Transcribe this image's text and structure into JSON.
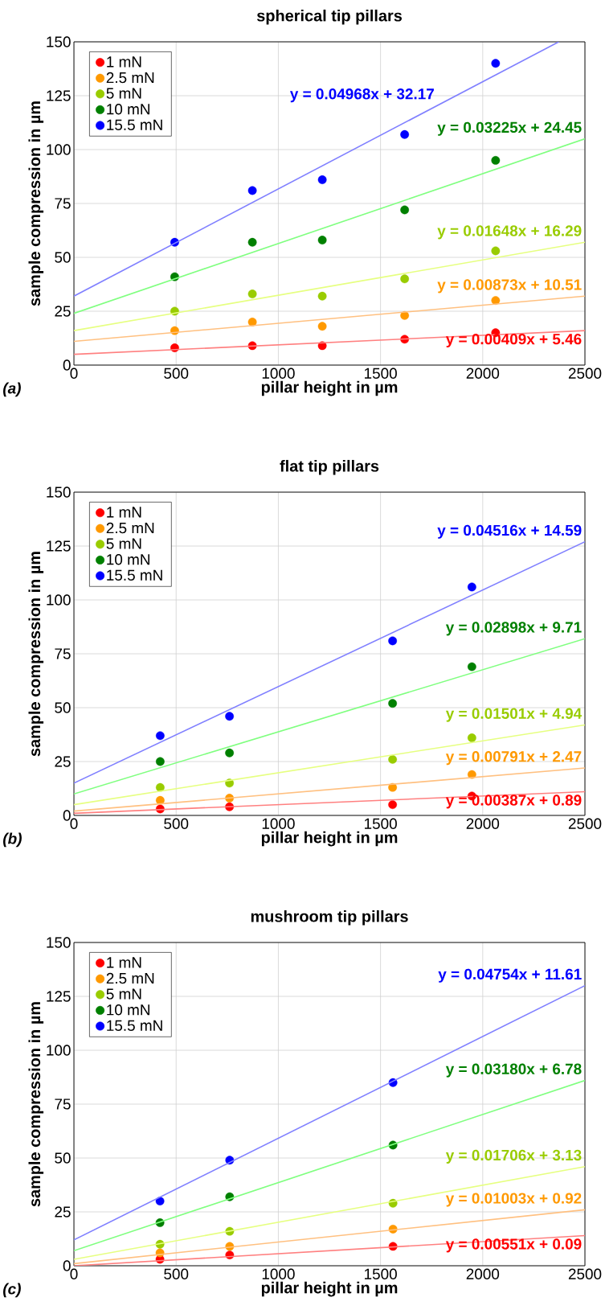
{
  "chart_data": [
    {
      "type": "scatter",
      "title": "spherical tip pillars",
      "xlabel": "pillar height in µm",
      "ylabel": "sample compression in µm",
      "xlim": [
        0,
        2500
      ],
      "ylim": [
        0,
        150
      ],
      "xticks": [
        0,
        500,
        1000,
        1500,
        2000,
        2500
      ],
      "yticks": [
        0,
        25,
        50,
        75,
        100,
        125,
        150
      ],
      "grid": true,
      "legend": "top left",
      "marker": "circle",
      "annotations": [
        "(a)",
        "y = 0.00409x + 5.46",
        "y = 0.00873x + 10.51",
        "y = 0.01648x + 16.29",
        "y = 0.03225x + 24.45",
        "y = 0.04968x + 32.17"
      ],
      "series": [
        {
          "name": "1 mN",
          "color": "#ff0000",
          "x": [
            493,
            873,
            1215,
            1618,
            2063
          ],
          "values": [
            8,
            9,
            9,
            12,
            15
          ]
        },
        {
          "name": "2.5 mN",
          "color": "#ff9900",
          "x": [
            493,
            873,
            1215,
            1618,
            2063
          ],
          "values": [
            16,
            20,
            18,
            23,
            30
          ]
        },
        {
          "name": "5 mN",
          "color": "#99cc00",
          "x": [
            493,
            873,
            1215,
            1618,
            2063
          ],
          "values": [
            25,
            33,
            32,
            40,
            53
          ]
        },
        {
          "name": "10 mN",
          "color": "#008000",
          "x": [
            493,
            873,
            1215,
            1618,
            2063
          ],
          "values": [
            41,
            57,
            58,
            72,
            95
          ]
        },
        {
          "name": "15.5 mN",
          "color": "#0000ff",
          "x": [
            493,
            873,
            1215,
            1618,
            2063
          ],
          "values": [
            57,
            81,
            86,
            107,
            140
          ]
        },
        {
          "type": "line",
          "marker": "none",
          "color": "#ff8080",
          "x": [
            0,
            2500
          ],
          "values": [
            5,
            16
          ]
        },
        {
          "type": "line",
          "marker": "none",
          "color": "#ffc080",
          "x": [
            0,
            2500
          ],
          "values": [
            11,
            32
          ]
        },
        {
          "type": "line",
          "marker": "none",
          "color": "#e6ff80",
          "x": [
            0,
            2500
          ],
          "values": [
            16,
            57
          ]
        },
        {
          "type": "line",
          "marker": "none",
          "color": "#80ff80",
          "x": [
            0,
            2500
          ],
          "values": [
            24,
            105
          ]
        },
        {
          "type": "line",
          "marker": "none",
          "color": "#8080ff",
          "x": [
            0,
            2372
          ],
          "values": [
            32,
            150
          ]
        }
      ]
    },
    {
      "type": "scatter",
      "title": "flat tip pillars",
      "xlabel": "pillar height in µm",
      "ylabel": "sample compression in µm",
      "xlim": [
        0,
        2500
      ],
      "ylim": [
        0,
        150
      ],
      "xticks": [
        0,
        500,
        1000,
        1500,
        2000,
        2500
      ],
      "yticks": [
        0,
        25,
        50,
        75,
        100,
        125,
        150
      ],
      "grid": true,
      "legend": "top left",
      "marker": "circle",
      "annotations": [
        "(b)",
        "y = 0.00387x + 0.89",
        "y = 0.00791x + 2.47",
        "y = 0.01501x + 4.94",
        "y = 0.02898x + 9.71",
        "y = 0.04516x + 14.59"
      ],
      "series": [
        {
          "name": "1 mN",
          "color": "#ff0000",
          "x": [
            422,
            761,
            1559,
            1947
          ],
          "values": [
            3,
            4,
            5,
            9
          ]
        },
        {
          "name": "2.5 mN",
          "color": "#ff9900",
          "x": [
            422,
            761,
            1559,
            1947
          ],
          "values": [
            7,
            8,
            13,
            19
          ]
        },
        {
          "name": "5 mN",
          "color": "#99cc00",
          "x": [
            422,
            761,
            1559,
            1947
          ],
          "values": [
            13,
            15,
            26,
            36
          ]
        },
        {
          "name": "10 mN",
          "color": "#008000",
          "x": [
            422,
            761,
            1559,
            1947
          ],
          "values": [
            25,
            29,
            52,
            69
          ]
        },
        {
          "name": "15.5 mN",
          "color": "#0000ff",
          "x": [
            422,
            761,
            1559,
            1947
          ],
          "values": [
            37,
            46,
            81,
            106
          ]
        },
        {
          "type": "line",
          "marker": "none",
          "color": "#ff8080",
          "x": [
            0,
            2500
          ],
          "values": [
            1,
            11
          ]
        },
        {
          "type": "line",
          "marker": "none",
          "color": "#ffc080",
          "x": [
            0,
            2500
          ],
          "values": [
            2,
            22
          ]
        },
        {
          "type": "line",
          "marker": "none",
          "color": "#e6ff80",
          "x": [
            0,
            2500
          ],
          "values": [
            5,
            42
          ]
        },
        {
          "type": "line",
          "marker": "none",
          "color": "#80ff80",
          "x": [
            0,
            2500
          ],
          "values": [
            10,
            82
          ]
        },
        {
          "type": "line",
          "marker": "none",
          "color": "#8080ff",
          "x": [
            0,
            2500
          ],
          "values": [
            15,
            127
          ]
        }
      ]
    },
    {
      "type": "scatter",
      "title": "mushroom tip pillars",
      "xlabel": "pillar height in µm",
      "ylabel": "sample compression in µm",
      "xlim": [
        0,
        2500
      ],
      "ylim": [
        0,
        150
      ],
      "xticks": [
        0,
        500,
        1000,
        1500,
        2000,
        2500
      ],
      "yticks": [
        0,
        25,
        50,
        75,
        100,
        125,
        150
      ],
      "grid": true,
      "legend": "top left",
      "marker": "circle",
      "annotations": [
        "(c)",
        "y = 0.00551x + 0.09",
        "y = 0.01003x + 0.92",
        "y = 0.01706x + 3.13",
        "y = 0.03180x + 6.78",
        "y = 0.04754x + 11.61"
      ],
      "series": [
        {
          "name": "1 mN",
          "color": "#ff0000",
          "x": [
            421,
            762,
            1561
          ],
          "values": [
            3,
            5,
            9
          ]
        },
        {
          "name": "2.5 mN",
          "color": "#ff9900",
          "x": [
            421,
            762,
            1561
          ],
          "values": [
            6,
            9,
            17
          ]
        },
        {
          "name": "5 mN",
          "color": "#99cc00",
          "x": [
            421,
            762,
            1561
          ],
          "values": [
            10,
            16,
            29
          ]
        },
        {
          "name": "10 mN",
          "color": "#008000",
          "x": [
            421,
            762,
            1561
          ],
          "values": [
            20,
            32,
            56
          ]
        },
        {
          "name": "15.5 mN",
          "color": "#0000ff",
          "x": [
            421,
            762,
            1561
          ],
          "values": [
            30,
            49,
            85
          ]
        },
        {
          "type": "line",
          "marker": "none",
          "color": "#ff8080",
          "x": [
            0,
            2500
          ],
          "values": [
            0,
            14
          ]
        },
        {
          "type": "line",
          "marker": "none",
          "color": "#ffc080",
          "x": [
            0,
            2500
          ],
          "values": [
            1,
            26
          ]
        },
        {
          "type": "line",
          "marker": "none",
          "color": "#e6ff80",
          "x": [
            0,
            2500
          ],
          "values": [
            3,
            46
          ]
        },
        {
          "type": "line",
          "marker": "none",
          "color": "#80ff80",
          "x": [
            0,
            2500
          ],
          "values": [
            7,
            86
          ]
        },
        {
          "type": "line",
          "marker": "none",
          "color": "#8080ff",
          "x": [
            0,
            2500
          ],
          "values": [
            12,
            130
          ]
        }
      ]
    }
  ]
}
